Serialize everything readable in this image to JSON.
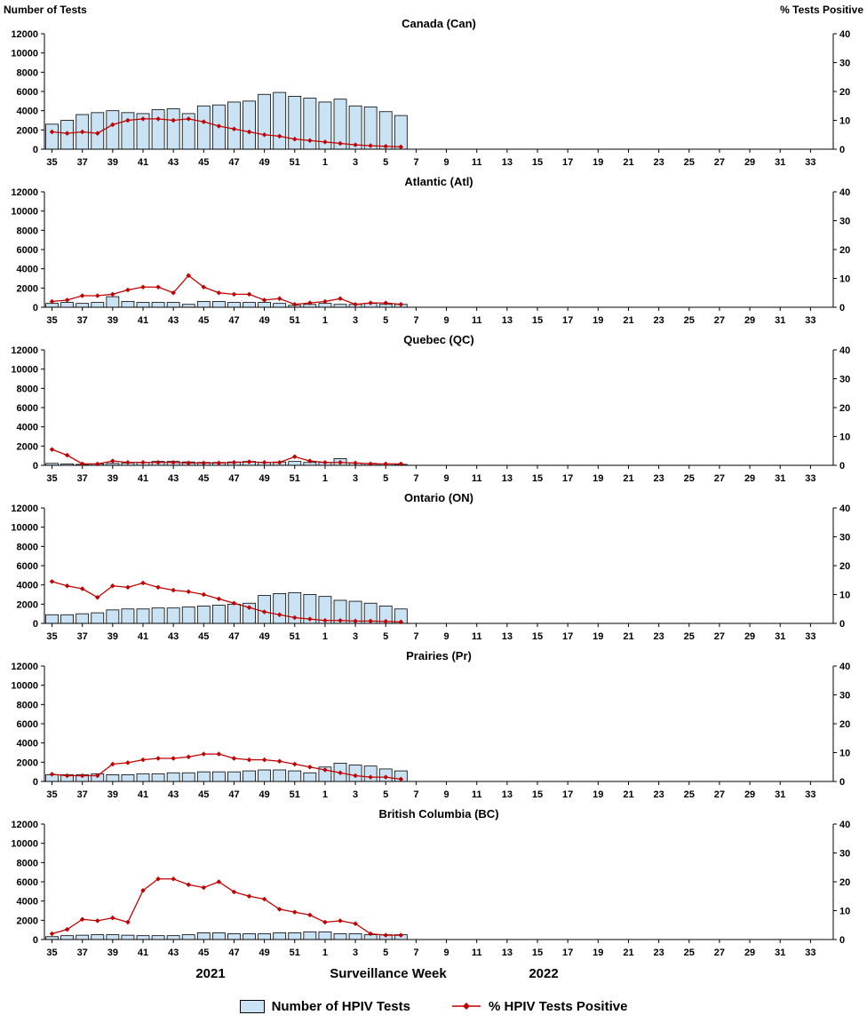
{
  "page": {
    "left_axis_title": "Number of Tests",
    "right_axis_title": "% Tests Positive",
    "x_axis": {
      "year_left": "2021",
      "title": "Surveillance Week",
      "year_right": "2022"
    },
    "legend": {
      "tests_label": "Number of HPIV Tests",
      "pct_label": "% HPIV Tests Positive"
    }
  },
  "colors": {
    "bar_fill": "#c9e3f5",
    "bar_stroke": "#000000",
    "line": "#c00000"
  },
  "axes": {
    "left_ticks": [
      0,
      2000,
      4000,
      6000,
      8000,
      10000,
      12000
    ],
    "right_ticks": [
      0,
      10,
      20,
      30,
      40
    ],
    "left_max": 12000,
    "right_max": 40,
    "weeks_2021_start": 35,
    "weeks_2021_end": 52,
    "weeks_2022_end": 34,
    "x_tick_labels": [
      35,
      37,
      39,
      41,
      43,
      45,
      47,
      49,
      51,
      1,
      3,
      5,
      7,
      9,
      11,
      13,
      15,
      17,
      19,
      21,
      23,
      25,
      27,
      29,
      31,
      33
    ]
  },
  "chart_data": [
    {
      "type": "bar+line",
      "title": "Canada (Can)",
      "first_week": 35,
      "tests": [
        2600,
        3000,
        3600,
        3800,
        4000,
        3800,
        3700,
        4100,
        4200,
        3700,
        4500,
        4600,
        4900,
        5000,
        5700,
        5900,
        5500,
        5300,
        4900,
        5200,
        4500,
        4400,
        3900,
        3500
      ],
      "pct_positive": [
        6,
        5.5,
        6,
        5.5,
        8.5,
        10,
        10.5,
        10.5,
        10,
        10.5,
        9.5,
        8,
        7,
        6,
        5,
        4.5,
        3.5,
        3,
        2.5,
        2,
        1.5,
        1.2,
        1,
        0.8
      ]
    },
    {
      "type": "bar+line",
      "title": "Atlantic (Atl)",
      "first_week": 35,
      "tests": [
        400,
        500,
        400,
        500,
        1100,
        600,
        500,
        500,
        500,
        300,
        600,
        600,
        500,
        500,
        500,
        400,
        200,
        300,
        400,
        300,
        300,
        400,
        300,
        300
      ],
      "pct_positive": [
        2,
        2.5,
        4,
        4,
        4.5,
        6,
        7,
        7,
        5,
        11,
        7,
        5,
        4.5,
        4.5,
        2.5,
        3,
        1,
        1.5,
        2,
        3,
        1,
        1.5,
        1.5,
        1
      ]
    },
    {
      "type": "bar+line",
      "title": "Quebec (QC)",
      "first_week": 35,
      "tests": [
        200,
        150,
        100,
        150,
        200,
        250,
        300,
        400,
        400,
        350,
        300,
        300,
        350,
        400,
        300,
        350,
        400,
        300,
        300,
        700,
        250,
        200,
        150,
        100
      ],
      "pct_positive": [
        5.5,
        3.5,
        0.5,
        0.5,
        1.5,
        1,
        1,
        1,
        1,
        0.8,
        0.8,
        0.8,
        1,
        1.2,
        1,
        1,
        3,
        1.5,
        1,
        1,
        0.8,
        0.5,
        0.5,
        0.5
      ]
    },
    {
      "type": "bar+line",
      "title": "Ontario (ON)",
      "first_week": 35,
      "tests": [
        900,
        900,
        1000,
        1100,
        1400,
        1500,
        1500,
        1600,
        1600,
        1700,
        1800,
        1900,
        2000,
        2100,
        2900,
        3100,
        3200,
        3000,
        2800,
        2400,
        2300,
        2100,
        1800,
        1500
      ],
      "pct_positive": [
        14.5,
        13,
        12,
        9,
        13,
        12.5,
        14,
        12.5,
        11.5,
        11,
        10,
        8.5,
        7,
        5.5,
        4,
        3,
        2,
        1.5,
        1,
        1,
        0.8,
        0.8,
        0.7,
        0.5
      ]
    },
    {
      "type": "bar+line",
      "title": "Prairies (Pr)",
      "first_week": 35,
      "tests": [
        700,
        700,
        700,
        800,
        700,
        700,
        800,
        800,
        900,
        900,
        1000,
        1000,
        1000,
        1100,
        1200,
        1200,
        1100,
        900,
        1500,
        1900,
        1700,
        1600,
        1300,
        1100
      ],
      "pct_positive": [
        2.5,
        2,
        2,
        2,
        6,
        6.5,
        7.5,
        8,
        8,
        8.5,
        9.5,
        9.5,
        8,
        7.5,
        7.5,
        7,
        6,
        5,
        4,
        3,
        2,
        1.5,
        1.5,
        0.8
      ]
    },
    {
      "type": "bar+line",
      "title": "British Columbia (BC)",
      "first_week": 35,
      "tests": [
        300,
        400,
        450,
        500,
        500,
        450,
        400,
        400,
        400,
        500,
        700,
        700,
        600,
        600,
        600,
        700,
        700,
        800,
        800,
        600,
        600,
        500,
        500,
        500
      ],
      "pct_positive": [
        2,
        3.5,
        7,
        6.5,
        7.5,
        6,
        17,
        21,
        21,
        19,
        18,
        20,
        16.5,
        15,
        14,
        10.5,
        9.5,
        8.5,
        6,
        6.5,
        5.5,
        2,
        1.5,
        1.5
      ]
    }
  ]
}
